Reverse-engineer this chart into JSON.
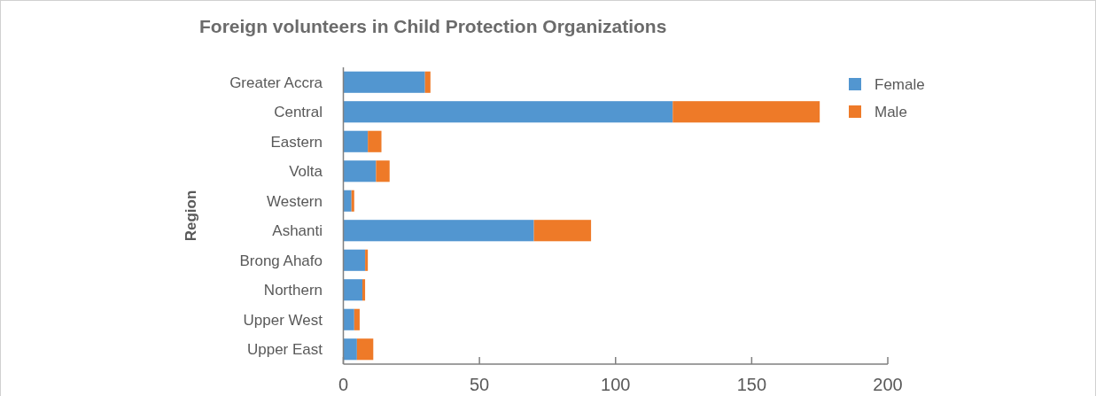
{
  "chart_data": {
    "type": "bar",
    "orientation": "horizontal",
    "stacked": true,
    "title": "Foreign volunteers in Child Protection Organizations",
    "ylabel": "Region",
    "categories": [
      "Greater Accra",
      "Central",
      "Eastern",
      "Volta",
      "Western",
      "Ashanti",
      "Brong Ahafo",
      "Northern",
      "Upper West",
      "Upper East"
    ],
    "series": [
      {
        "name": "Female",
        "color": "#5296d0",
        "values": [
          30,
          121,
          9,
          12,
          3,
          70,
          8,
          7,
          4,
          5
        ]
      },
      {
        "name": "Male",
        "color": "#ee7a28",
        "values": [
          2,
          54,
          5,
          5,
          1,
          21,
          1,
          1,
          2,
          6
        ]
      }
    ],
    "xlim": [
      0,
      200
    ],
    "xticks": [
      0,
      50,
      100,
      150,
      200
    ],
    "grid": false,
    "legend": "top right"
  }
}
